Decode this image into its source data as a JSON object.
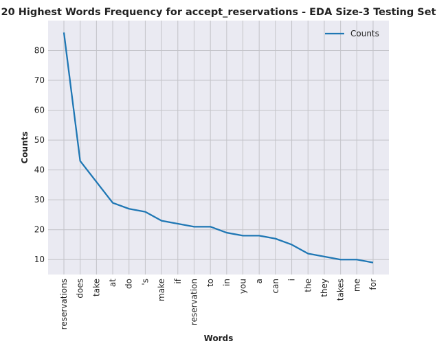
{
  "chart_data": {
    "type": "line",
    "title": "20 Highest Words Frequency for accept_reservations - EDA Size-3 Testing Set",
    "xlabel": "Words",
    "ylabel": "Counts",
    "categories": [
      "reservations",
      "does",
      "take",
      "at",
      "do",
      "'s",
      "make",
      "if",
      "reservation",
      "to",
      "in",
      "you",
      "a",
      "can",
      "i",
      "the",
      "they",
      "takes",
      "me",
      "for"
    ],
    "series": [
      {
        "name": "Counts",
        "color": "#1f77b4",
        "values": [
          86,
          43,
          36,
          29,
          27,
          26,
          23,
          22,
          21,
          21,
          19,
          18,
          18,
          17,
          15,
          12,
          11,
          10,
          10,
          9
        ]
      }
    ],
    "ylim": [
      5,
      90
    ],
    "yticks": [
      10,
      20,
      30,
      40,
      50,
      60,
      70,
      80
    ],
    "grid": true,
    "legend": "top-right"
  }
}
